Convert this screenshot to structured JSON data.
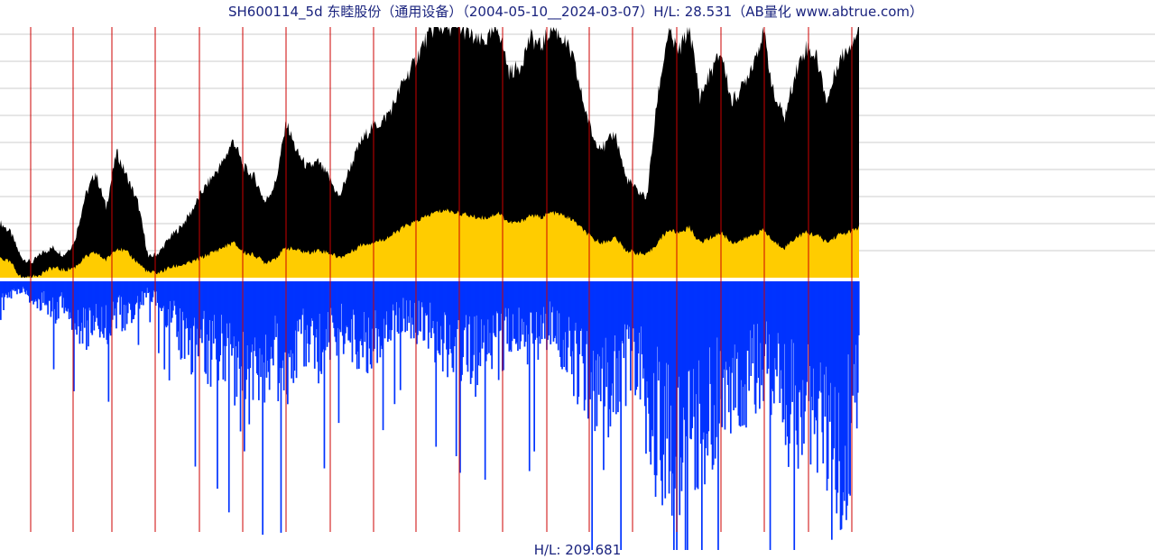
{
  "title": "SH600114_5d 东睦股份（通用设备）（2004-05-10__2024-03-07）H/L: 28.531（AB量化  www.abtrue.com）",
  "bottom_label": "H/L: 209.681",
  "colors": {
    "price_high": "#000000",
    "price_low": "#ffcc00",
    "volume": "#0033ff",
    "year_line": "#cc0000",
    "grid": "#cccccc"
  },
  "chart_data": [
    {
      "type": "area",
      "panel": "price",
      "series": [
        {
          "values_high": [
            0.22,
            0.18,
            0.08,
            0.06,
            0.1,
            0.12,
            0.09,
            0.14,
            0.32,
            0.42,
            0.28,
            0.5,
            0.4,
            0.3,
            0.08,
            0.1,
            0.16,
            0.2,
            0.26,
            0.34,
            0.4,
            0.46,
            0.55,
            0.44,
            0.4,
            0.3,
            0.38,
            0.62,
            0.5,
            0.44,
            0.46,
            0.4,
            0.32,
            0.44,
            0.54,
            0.6,
            0.62,
            0.68,
            0.78,
            0.85,
            0.94,
            1.0,
            1.0,
            1.0,
            0.98,
            0.94,
            0.95,
            1.0,
            0.82,
            0.84,
            0.96,
            0.92,
            1.0,
            0.96,
            0.88,
            0.7,
            0.55,
            0.52,
            0.58,
            0.4,
            0.35,
            0.32,
            0.72,
            0.98,
            0.9,
            1.0,
            0.72,
            0.82,
            0.9,
            0.7,
            0.76,
            0.86,
            0.98,
            0.72,
            0.64,
            0.82,
            0.92,
            0.88,
            0.7,
            0.86,
            0.92,
            1.0
          ],
          "values_low": [
            0.08,
            0.06,
            0.0,
            0.0,
            0.02,
            0.04,
            0.03,
            0.04,
            0.08,
            0.1,
            0.07,
            0.12,
            0.1,
            0.06,
            0.02,
            0.02,
            0.04,
            0.05,
            0.06,
            0.08,
            0.1,
            0.12,
            0.14,
            0.1,
            0.09,
            0.06,
            0.08,
            0.12,
            0.11,
            0.1,
            0.11,
            0.1,
            0.08,
            0.1,
            0.13,
            0.14,
            0.15,
            0.17,
            0.2,
            0.22,
            0.24,
            0.26,
            0.27,
            0.26,
            0.25,
            0.24,
            0.24,
            0.26,
            0.22,
            0.22,
            0.25,
            0.24,
            0.26,
            0.25,
            0.23,
            0.19,
            0.15,
            0.14,
            0.16,
            0.11,
            0.1,
            0.09,
            0.14,
            0.19,
            0.18,
            0.2,
            0.14,
            0.16,
            0.18,
            0.14,
            0.15,
            0.17,
            0.19,
            0.14,
            0.12,
            0.16,
            0.18,
            0.17,
            0.14,
            0.17,
            0.18,
            0.2
          ]
        }
      ]
    },
    {
      "type": "bar",
      "panel": "volume",
      "series": [
        {
          "values": [
            0.12,
            0.06,
            0.04,
            0.08,
            0.1,
            0.14,
            0.1,
            0.18,
            0.22,
            0.16,
            0.2,
            0.14,
            0.18,
            0.1,
            0.06,
            0.12,
            0.16,
            0.24,
            0.3,
            0.28,
            0.34,
            0.32,
            0.4,
            0.52,
            0.46,
            0.38,
            0.36,
            0.44,
            0.3,
            0.28,
            0.34,
            0.26,
            0.22,
            0.26,
            0.3,
            0.28,
            0.24,
            0.2,
            0.16,
            0.22,
            0.18,
            0.26,
            0.3,
            0.28,
            0.34,
            0.36,
            0.3,
            0.32,
            0.26,
            0.28,
            0.3,
            0.22,
            0.2,
            0.28,
            0.36,
            0.4,
            0.46,
            0.6,
            0.5,
            0.44,
            0.4,
            0.56,
            0.68,
            0.82,
            0.72,
            0.64,
            0.7,
            0.6,
            0.52,
            0.56,
            0.48,
            0.44,
            0.4,
            0.46,
            0.58,
            0.62,
            0.54,
            0.66,
            0.8,
            0.92,
            0.7,
            0.5
          ]
        }
      ]
    }
  ]
}
